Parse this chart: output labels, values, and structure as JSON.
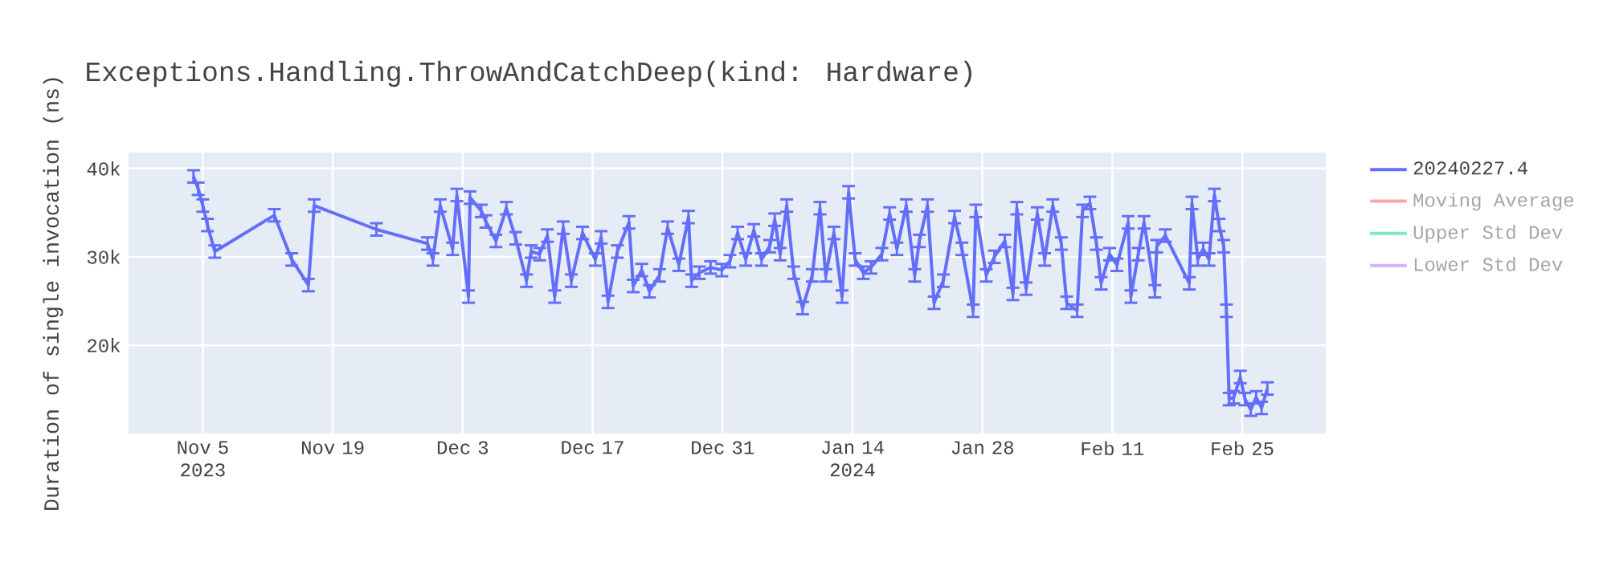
{
  "chart_data": {
    "type": "line",
    "title": "Exceptions.Handling.ThrowAndCatchDeep(kind: Hardware)",
    "ylabel": "Duration of single invocation (ns)",
    "x": [
      "2023-11-04T00:00",
      "2023-11-04T12:00",
      "2023-11-05T00:00",
      "2023-11-05T12:00",
      "2023-11-06T07:00",
      "2023-11-12T17:00",
      "2023-11-14T14:00",
      "2023-11-16T09:00",
      "2023-11-17T00:00",
      "2023-11-23T17:00",
      "2023-11-29T05:00",
      "2023-11-29T19:00",
      "2023-11-30T14:00",
      "2023-12-01T22:00",
      "2023-12-02T09:00",
      "2023-12-03T15:00",
      "2023-12-03T19:00",
      "2023-12-05T00:00",
      "2023-12-05T12:00",
      "2023-12-06T14:00",
      "2023-12-07T17:00",
      "2023-12-08T17:00",
      "2023-12-09T21:00",
      "2023-12-10T09:00",
      "2023-12-11T07:00",
      "2023-12-12T03:00",
      "2023-12-12T22:00",
      "2023-12-13T20:00",
      "2023-12-14T17:00",
      "2023-12-15T22:00",
      "2023-12-17T07:00",
      "2023-12-17T22:00",
      "2023-12-18T16:00",
      "2023-12-19T16:00",
      "2023-12-20T22:00",
      "2023-12-21T09:00",
      "2023-12-22T07:00",
      "2023-12-23T03:00",
      "2023-12-24T05:00",
      "2023-12-25T02:00",
      "2023-12-26T07:00",
      "2023-12-27T08:00",
      "2023-12-27T16:00",
      "2023-12-28T12:00",
      "2023-12-29T17:00",
      "2023-12-30T22:00",
      "2023-12-31T19:00",
      "2024-01-01T15:00",
      "2024-01-02T12:00",
      "2024-01-03T09:00",
      "2024-01-04T05:00",
      "2024-01-05T02:00",
      "2024-01-05T15:00",
      "2024-01-06T05:00",
      "2024-01-06T22:00",
      "2024-01-07T16:00",
      "2024-01-08T15:00",
      "2024-01-09T16:00",
      "2024-01-10T12:00",
      "2024-01-11T03:00",
      "2024-01-12T00:00",
      "2024-01-12T21:00",
      "2024-01-13T14:00",
      "2024-01-14T07:00",
      "2024-01-15T04:00",
      "2024-01-16T00:00",
      "2024-01-17T04:00",
      "2024-01-18T00:00",
      "2024-01-18T19:00",
      "2024-01-19T19:00",
      "2024-01-20T17:00",
      "2024-01-21T05:00",
      "2024-01-22T02:00",
      "2024-01-22T19:00",
      "2024-01-23T19:00",
      "2024-01-25T00:00",
      "2024-01-25T19:00",
      "2024-01-27T00:00",
      "2024-01-27T07:00",
      "2024-01-28T10:00",
      "2024-01-29T07:00",
      "2024-01-30T10:00",
      "2024-01-31T07:00",
      "2024-01-31T17:00",
      "2024-02-01T17:00",
      "2024-02-02T22:00",
      "2024-02-03T17:00",
      "2024-02-04T14:00",
      "2024-02-05T12:00",
      "2024-02-06T02:00",
      "2024-02-07T05:00",
      "2024-02-07T19:00",
      "2024-02-08T14:00",
      "2024-02-09T07:00",
      "2024-02-09T19:00",
      "2024-02-10T17:00",
      "2024-02-11T12:00",
      "2024-02-12T17:00",
      "2024-02-13T00:00",
      "2024-02-13T19:00",
      "2024-02-14T10:00",
      "2024-02-15T14:00",
      "2024-02-15T19:00",
      "2024-02-16T17:00",
      "2024-02-19T07:00",
      "2024-02-19T14:00",
      "2024-02-20T05:00",
      "2024-02-20T19:00",
      "2024-02-21T10:00",
      "2024-02-22T00:00",
      "2024-02-22T12:00",
      "2024-02-23T00:00",
      "2024-02-23T07:00",
      "2024-02-23T14:00",
      "2024-02-24T02:00",
      "2024-02-24T19:00",
      "2024-02-25T07:00",
      "2024-02-25T22:00",
      "2024-02-26T12:00",
      "2024-02-27T02:00",
      "2024-02-27T17:00"
    ],
    "series": [
      {
        "name": "20240227.4",
        "color": "#636efa",
        "values": [
          39100,
          37700,
          35800,
          33600,
          30600,
          34700,
          29700,
          26800,
          35800,
          33100,
          31500,
          29700,
          35800,
          30900,
          37000,
          25500,
          36700,
          35200,
          34000,
          31800,
          35500,
          32100,
          27300,
          30600,
          30300,
          32400,
          25500,
          33300,
          27300,
          32700,
          29700,
          32200,
          24900,
          30600,
          33900,
          26700,
          28500,
          26100,
          27900,
          33300,
          29100,
          34500,
          27300,
          28200,
          28800,
          28500,
          29500,
          32700,
          29700,
          33000,
          29700,
          31200,
          34200,
          30300,
          35800,
          28200,
          24200,
          27900,
          35500,
          27900,
          32700,
          25500,
          37300,
          29700,
          28200,
          28800,
          30300,
          34900,
          30900,
          35800,
          27900,
          31800,
          35800,
          24800,
          27300,
          34500,
          30900,
          23900,
          35200,
          27900,
          30000,
          31800,
          25800,
          35500,
          26400,
          34900,
          29700,
          35800,
          31500,
          24800,
          23900,
          35200,
          36100,
          31500,
          27000,
          30300,
          29100,
          33900,
          25500,
          30300,
          33900,
          26100,
          31200,
          32400,
          27000,
          36100,
          29700,
          30900,
          29700,
          37000,
          33600,
          31200,
          23900,
          13900,
          14100,
          16400,
          13900,
          12700,
          14100,
          12900,
          15100
        ],
        "errors": [
          700,
          700,
          700,
          700,
          700,
          700,
          700,
          700,
          700,
          700,
          700,
          700,
          700,
          700,
          700,
          700,
          700,
          700,
          700,
          700,
          700,
          700,
          700,
          700,
          700,
          700,
          700,
          700,
          700,
          700,
          700,
          700,
          700,
          700,
          700,
          700,
          700,
          700,
          700,
          700,
          700,
          700,
          700,
          700,
          700,
          700,
          700,
          700,
          700,
          700,
          700,
          700,
          700,
          700,
          700,
          700,
          700,
          700,
          700,
          700,
          700,
          700,
          700,
          700,
          700,
          700,
          700,
          700,
          700,
          700,
          700,
          700,
          700,
          700,
          700,
          700,
          700,
          700,
          700,
          700,
          700,
          700,
          700,
          700,
          700,
          700,
          700,
          700,
          700,
          700,
          700,
          700,
          700,
          700,
          700,
          700,
          700,
          700,
          700,
          700,
          700,
          700,
          700,
          700,
          700,
          700,
          700,
          700,
          700,
          700,
          700,
          700,
          700,
          700,
          700,
          700,
          700,
          700,
          700,
          700,
          700
        ]
      },
      {
        "name": "Moving Average",
        "color": "#f7aa9d",
        "values": [
          null,
          null,
          null,
          null,
          null,
          null,
          null,
          null,
          null,
          null,
          null,
          null,
          null,
          null,
          null,
          null,
          null,
          null,
          null,
          null,
          null,
          null,
          null,
          null,
          null,
          null,
          null,
          null,
          null,
          null,
          null,
          null,
          null,
          null,
          null,
          null,
          null,
          null,
          null,
          null,
          null,
          null,
          null,
          null,
          null,
          null,
          null,
          null,
          null,
          null,
          null,
          null,
          null,
          null,
          null,
          null,
          null,
          null,
          null,
          null,
          null,
          null,
          null,
          null,
          null,
          null,
          null,
          null,
          null,
          null,
          null,
          null,
          null,
          null,
          null,
          null,
          null,
          null,
          null,
          null,
          null,
          null,
          null,
          null,
          null,
          null,
          null,
          null,
          null,
          null,
          null,
          null,
          null,
          null,
          null,
          null,
          null,
          null,
          null,
          null,
          null,
          null,
          null,
          null,
          null,
          null,
          null,
          null,
          null,
          null,
          null,
          null,
          null,
          null,
          null,
          null,
          null,
          null,
          null,
          null,
          null
        ]
      },
      {
        "name": "Upper Std Dev",
        "color": "#7fe5ca",
        "values": [
          null,
          null,
          null,
          null,
          null,
          null,
          null,
          null,
          null,
          null,
          null,
          null,
          null,
          null,
          null,
          null,
          null,
          null,
          null,
          null,
          null,
          null,
          null,
          null,
          null,
          null,
          null,
          null,
          null,
          null,
          null,
          null,
          null,
          null,
          null,
          null,
          null,
          null,
          null,
          null,
          null,
          null,
          null,
          null,
          null,
          null,
          null,
          null,
          null,
          null,
          null,
          null,
          null,
          null,
          null,
          null,
          null,
          null,
          null,
          null,
          null,
          null,
          null,
          null,
          null,
          null,
          null,
          null,
          null,
          null,
          null,
          null,
          null,
          null,
          null,
          null,
          null,
          null,
          null,
          null,
          null,
          null,
          null,
          null,
          null,
          null,
          null,
          null,
          null,
          null,
          null,
          null,
          null,
          null,
          null,
          null,
          null,
          null,
          null,
          null,
          null,
          null,
          null,
          null,
          null,
          null,
          null,
          null,
          null,
          null,
          null,
          null,
          null,
          null,
          null,
          null,
          null,
          null,
          null,
          null,
          null
        ]
      },
      {
        "name": "Lower Std Dev",
        "color": "#d5b1fc",
        "values": [
          null,
          null,
          null,
          null,
          null,
          null,
          null,
          null,
          null,
          null,
          null,
          null,
          null,
          null,
          null,
          null,
          null,
          null,
          null,
          null,
          null,
          null,
          null,
          null,
          null,
          null,
          null,
          null,
          null,
          null,
          null,
          null,
          null,
          null,
          null,
          null,
          null,
          null,
          null,
          null,
          null,
          null,
          null,
          null,
          null,
          null,
          null,
          null,
          null,
          null,
          null,
          null,
          null,
          null,
          null,
          null,
          null,
          null,
          null,
          null,
          null,
          null,
          null,
          null,
          null,
          null,
          null,
          null,
          null,
          null,
          null,
          null,
          null,
          null,
          null,
          null,
          null,
          null,
          null,
          null,
          null,
          null,
          null,
          null,
          null,
          null,
          null,
          null,
          null,
          null,
          null,
          null,
          null,
          null,
          null,
          null,
          null,
          null,
          null,
          null,
          null,
          null,
          null,
          null,
          null,
          null,
          null,
          null,
          null,
          null,
          null,
          null,
          null,
          null,
          null,
          null,
          null,
          null,
          null,
          null,
          null
        ]
      }
    ],
    "xlim": [
      "2023-10-28",
      "2024-03-05"
    ],
    "xticks": [
      {
        "value": "2023-11-05",
        "label": "Nov 5 2023"
      },
      {
        "value": "2023-11-19",
        "label": "Nov 19"
      },
      {
        "value": "2023-12-03",
        "label": "Dec 3"
      },
      {
        "value": "2023-12-17",
        "label": "Dec 17"
      },
      {
        "value": "2023-12-31",
        "label": "Dec 31"
      },
      {
        "value": "2024-01-14",
        "label": "Jan 14 2024"
      },
      {
        "value": "2024-01-28",
        "label": "Jan 28"
      },
      {
        "value": "2024-02-11",
        "label": "Feb 11"
      },
      {
        "value": "2024-02-25",
        "label": "Feb 25"
      }
    ],
    "ylim": [
      10000,
      41800
    ],
    "yticks": [
      {
        "value": 20000,
        "label": "20k"
      },
      {
        "value": 30000,
        "label": "30k"
      },
      {
        "value": 40000,
        "label": "40k"
      }
    ],
    "grid": true,
    "legend": "top right"
  }
}
